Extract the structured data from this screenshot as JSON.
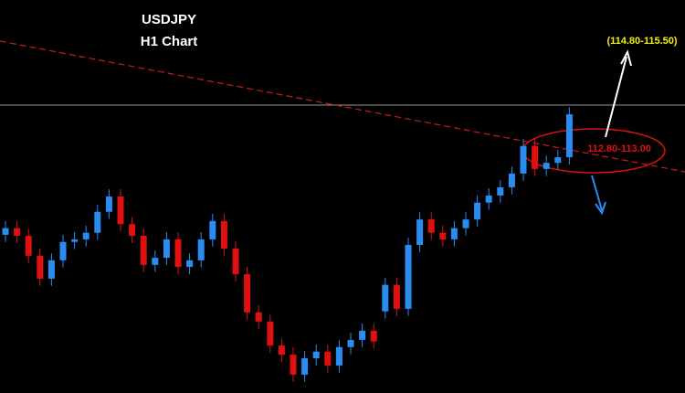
{
  "chart_data": {
    "type": "candlestick",
    "title": "USDJPY",
    "subtitle": "H1 Chart",
    "annotations": [
      "(114.80-115.50)",
      "112.80-113.00"
    ],
    "up_color": "#2a8cf0",
    "down_color": "#e01010",
    "ylim": [
      108.2,
      115.9
    ],
    "open": [
      111.3,
      111.43,
      111.28,
      110.89,
      110.44,
      110.8,
      111.16,
      111.21,
      111.34,
      111.75,
      112.05,
      111.51,
      111.28,
      110.71,
      110.85,
      111.21,
      110.67,
      110.8,
      111.21,
      111.57,
      111.03,
      110.53,
      109.78,
      109.6,
      109.13,
      108.95,
      108.56,
      108.88,
      109.01,
      108.74,
      109.1,
      109.24,
      109.42,
      109.8,
      110.32,
      109.85,
      111.1,
      111.6,
      111.34,
      111.21,
      111.43,
      111.6,
      111.93,
      112.07,
      112.23,
      112.5,
      113.04,
      112.59,
      112.71,
      112.82
    ],
    "high": [
      111.57,
      111.57,
      111.42,
      111.03,
      110.94,
      111.3,
      111.35,
      111.48,
      111.89,
      112.19,
      112.19,
      111.65,
      111.42,
      110.99,
      111.35,
      111.35,
      110.94,
      111.35,
      111.71,
      111.71,
      111.17,
      110.67,
      109.92,
      109.74,
      109.27,
      109.09,
      109.02,
      109.15,
      109.15,
      109.24,
      109.38,
      109.56,
      109.56,
      110.46,
      110.46,
      111.24,
      111.74,
      111.74,
      111.48,
      111.57,
      111.74,
      112.07,
      112.21,
      112.37,
      112.64,
      113.18,
      113.18,
      112.85,
      112.96,
      113.8
    ],
    "low": [
      111.16,
      111.14,
      110.75,
      110.3,
      110.3,
      110.66,
      111.02,
      111.07,
      111.2,
      111.61,
      111.37,
      111.14,
      110.57,
      110.57,
      110.71,
      110.53,
      110.53,
      110.66,
      111.07,
      110.89,
      110.39,
      109.64,
      109.46,
      108.99,
      108.81,
      108.42,
      108.42,
      108.74,
      108.6,
      108.6,
      108.96,
      109.1,
      109.07,
      109.66,
      109.71,
      109.71,
      110.96,
      111.2,
      111.07,
      111.07,
      111.29,
      111.46,
      111.79,
      111.93,
      112.09,
      112.36,
      112.45,
      112.45,
      112.57,
      112.68
    ],
    "close": [
      111.43,
      111.28,
      110.89,
      110.44,
      110.8,
      111.16,
      111.21,
      111.34,
      111.75,
      112.05,
      111.51,
      111.28,
      110.71,
      110.85,
      111.21,
      110.67,
      110.8,
      111.21,
      111.57,
      111.03,
      110.53,
      109.78,
      109.6,
      109.13,
      108.95,
      108.56,
      108.88,
      109.01,
      108.74,
      109.1,
      109.24,
      109.42,
      109.21,
      110.32,
      109.85,
      111.1,
      111.6,
      111.34,
      111.21,
      111.43,
      111.6,
      111.93,
      112.07,
      112.23,
      112.5,
      113.04,
      112.59,
      112.71,
      112.82,
      113.66
    ]
  }
}
